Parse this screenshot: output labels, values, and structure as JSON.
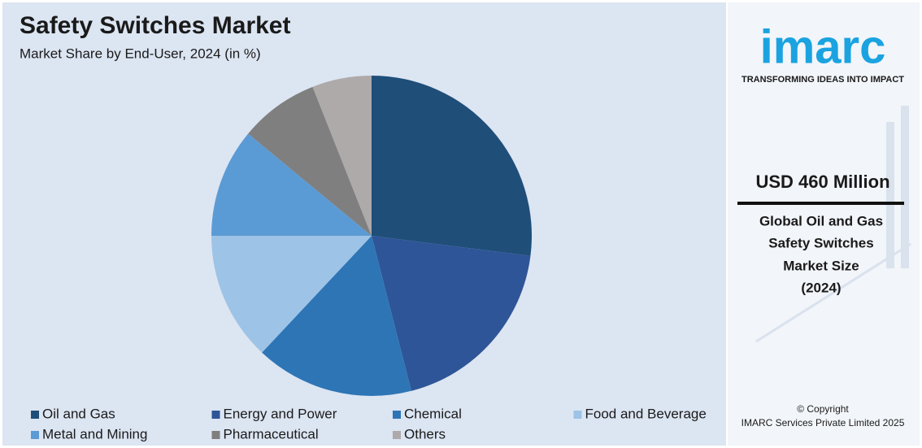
{
  "chart_data": {
    "type": "pie",
    "title": "Safety Switches Market",
    "subtitle": "Market Share by End-User, 2024 (in %)",
    "categories": [
      "Oil and Gas",
      "Energy and Power",
      "Chemical",
      "Food and Beverage",
      "Metal and Mining",
      "Pharmaceutical",
      "Others"
    ],
    "values": [
      27,
      19,
      16,
      13,
      11,
      8,
      6
    ],
    "colors": [
      "#1f4e79",
      "#2e5597",
      "#2e75b6",
      "#9dc3e6",
      "#5b9bd5",
      "#7f7f7f",
      "#aeaaaa"
    ],
    "legend": "bottom"
  },
  "sidebar": {
    "logo": "imarc",
    "tagline": "TRANSFORMING IDEAS INTO IMPACT",
    "headline": "USD 460 Million",
    "description": [
      "Global Oil and Gas",
      "Safety Switches",
      "Market Size",
      "(2024)"
    ],
    "copyright": [
      "© Copyright",
      "IMARC Services Private Limited 2025"
    ]
  }
}
